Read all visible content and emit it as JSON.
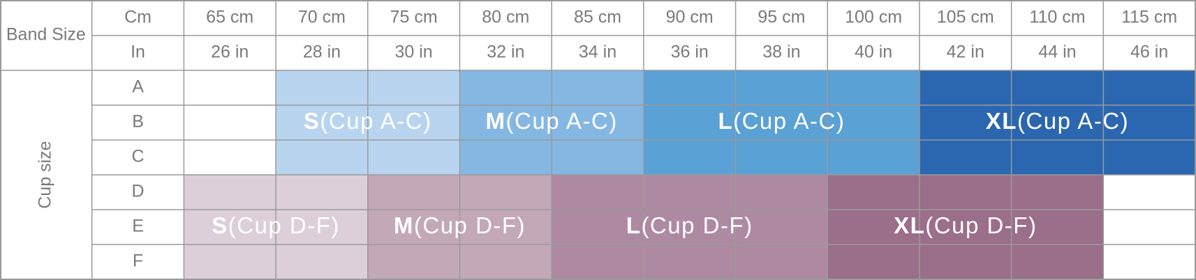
{
  "table": {
    "band_size_label": "Band Size",
    "cm_label": "Cm",
    "in_label": "In",
    "cm": [
      "65 cm",
      "70 cm",
      "75 cm",
      "80 cm",
      "85 cm",
      "90 cm",
      "95 cm",
      "100 cm",
      "105 cm",
      "110 cm",
      "115 cm"
    ],
    "in": [
      "26 in",
      "28 in",
      "30 in",
      "32 in",
      "34 in",
      "36 in",
      "38 in",
      "40 in",
      "42 in",
      "44 in",
      "46 in"
    ],
    "cup_size_label": "Cup size",
    "cups": [
      "A",
      "B",
      "C",
      "D",
      "E",
      "F"
    ],
    "sizes_a_c": [
      {
        "name": "S",
        "cups": "(Cup A-C)"
      },
      {
        "name": "M",
        "cups": "(Cup A-C)"
      },
      {
        "name": "L",
        "cups": "(Cup A-C)"
      },
      {
        "name": "XL",
        "cups": "(Cup A-C)"
      }
    ],
    "sizes_d_f": [
      {
        "name": "S",
        "cups": "(Cup D-F)"
      },
      {
        "name": "M",
        "cups": "(Cup D-F)"
      },
      {
        "name": "L",
        "cups": "(Cup D-F)"
      },
      {
        "name": "XL",
        "cups": "(Cup D-F)"
      }
    ]
  }
}
